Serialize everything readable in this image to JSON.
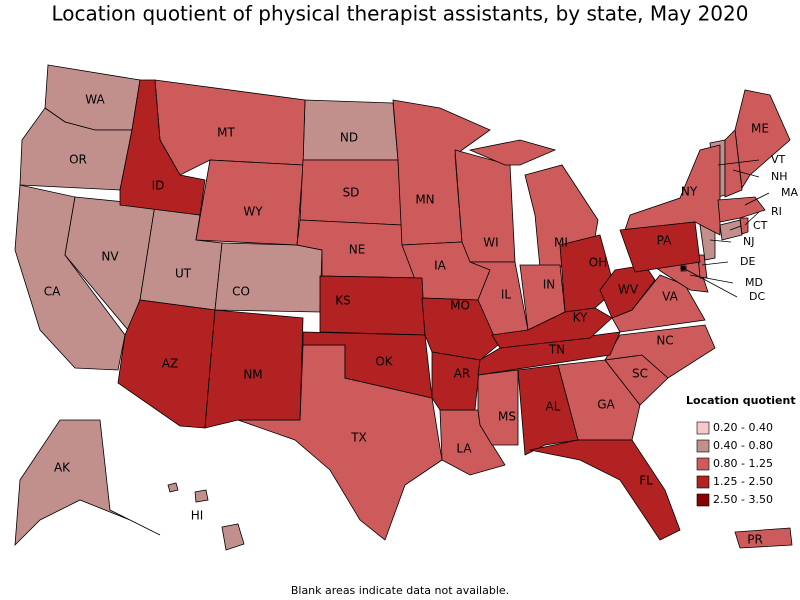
{
  "title": "Location quotient of physical therapist assistants, by state, May 2020",
  "legend": {
    "title": "Location quotient",
    "items": [
      {
        "label": "0.20 - 0.40",
        "color": "#f7c8c8",
        "states": []
      },
      {
        "label": "0.40 - 0.80",
        "color": "#c1908c",
        "states": [
          "WA",
          "OR",
          "CA",
          "NV",
          "UT",
          "CO",
          "ND",
          "AK",
          "HI",
          "VT",
          "NJ",
          "CT"
        ]
      },
      {
        "label": "0.80 - 1.25",
        "color": "#cd5b5b",
        "states": [
          "MT",
          "WY",
          "SD",
          "NE",
          "MN",
          "IA",
          "WI",
          "IL",
          "MI",
          "IN",
          "TX",
          "LA",
          "MS",
          "GA",
          "SC",
          "NC",
          "VA",
          "MD",
          "DE",
          "DC",
          "NY",
          "ME",
          "NH",
          "MA",
          "RI",
          "PR"
        ]
      },
      {
        "label": "1.25 - 2.50",
        "color": "#b22222",
        "states": [
          "ID",
          "AZ",
          "NM",
          "KS",
          "MO",
          "OK",
          "AR",
          "TN",
          "AL",
          "FL",
          "OH",
          "WV",
          "KY",
          "PA"
        ]
      },
      {
        "label": "2.50 - 3.50",
        "color": "#8b0000",
        "states": []
      }
    ]
  },
  "note": "Blank areas indicate data not available."
}
